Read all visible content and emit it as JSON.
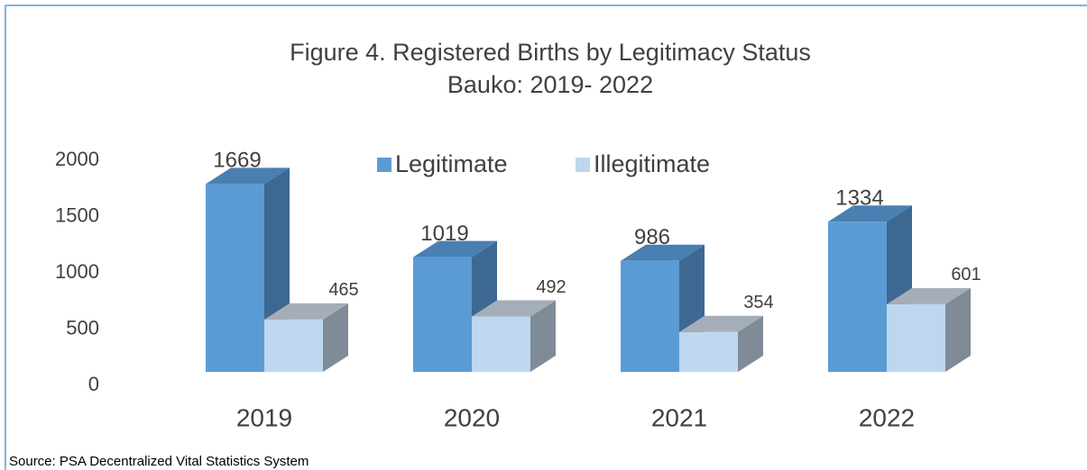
{
  "chart_data": {
    "type": "bar3d",
    "title": "Figure 4. Registered Births by Legitimacy Status",
    "subtitle": "Bauko: 2019- 2022",
    "categories": [
      "2019",
      "2020",
      "2021",
      "2022"
    ],
    "series": [
      {
        "name": "Legitimate",
        "color": "#5b9bd5",
        "values": [
          1669,
          1019,
          986,
          1334
        ]
      },
      {
        "name": "Illegitimate",
        "color": "#bdd7ee",
        "values": [
          465,
          492,
          354,
          601
        ]
      }
    ],
    "ylim": [
      0,
      2000
    ],
    "yticks": [
      0,
      500,
      1000,
      1500,
      2000
    ],
    "legend": "top",
    "source": "Source: PSA Decentralized Vital Statistics System"
  }
}
